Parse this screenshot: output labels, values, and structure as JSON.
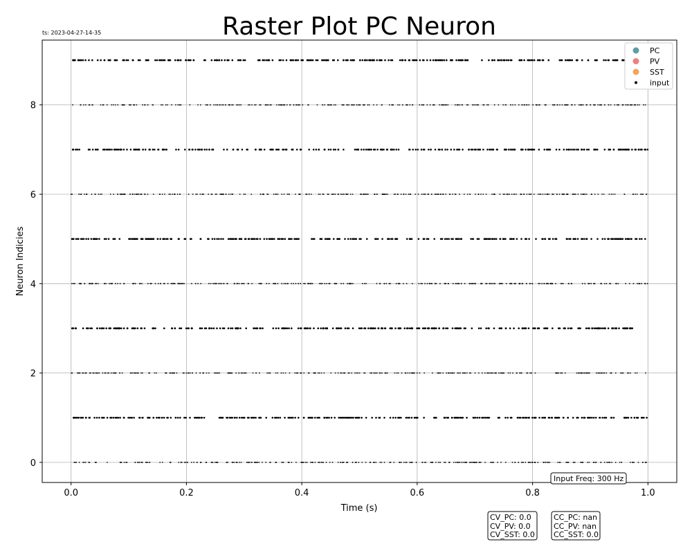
{
  "chart_data": {
    "type": "scatter",
    "title": "Raster Plot PC Neuron",
    "timestamp": "ts: 2023-04-27-14-35",
    "xlabel": "Time (s)",
    "ylabel": "Neuron Indicies",
    "xlim": [
      -0.05,
      1.05
    ],
    "ylim": [
      -0.45,
      9.45
    ],
    "xticks": [
      "0.0",
      "0.2",
      "0.4",
      "0.6",
      "0.8",
      "1.0"
    ],
    "yticks": [
      "0",
      "2",
      "4",
      "6",
      "8"
    ],
    "grid": true,
    "legend_position": "top-right",
    "legend": [
      {
        "name": "PC",
        "color": "#5f9ea0"
      },
      {
        "name": "PV",
        "color": "#f08080"
      },
      {
        "name": "SST",
        "color": "#f4a460"
      },
      {
        "name": "input",
        "color": "#000000"
      }
    ],
    "series": [
      {
        "name": "PC",
        "values": []
      },
      {
        "name": "PV",
        "values": []
      },
      {
        "name": "SST",
        "values": []
      },
      {
        "name": "input",
        "rows": [
          0,
          1,
          2,
          3,
          4,
          5,
          6,
          7,
          8,
          9
        ],
        "time_range": [
          0.0,
          1.0
        ],
        "approx_spikes_per_row": 300
      }
    ],
    "annotations": {
      "input_freq": "Input Freq: 300 Hz",
      "cv": [
        "CV_PC: 0.0",
        "CV_PV: 0.0",
        "CV_SST: 0.0"
      ],
      "cc": [
        "CC_PC: nan",
        "CC_PV: nan",
        "CC_SST: 0.0"
      ]
    }
  }
}
